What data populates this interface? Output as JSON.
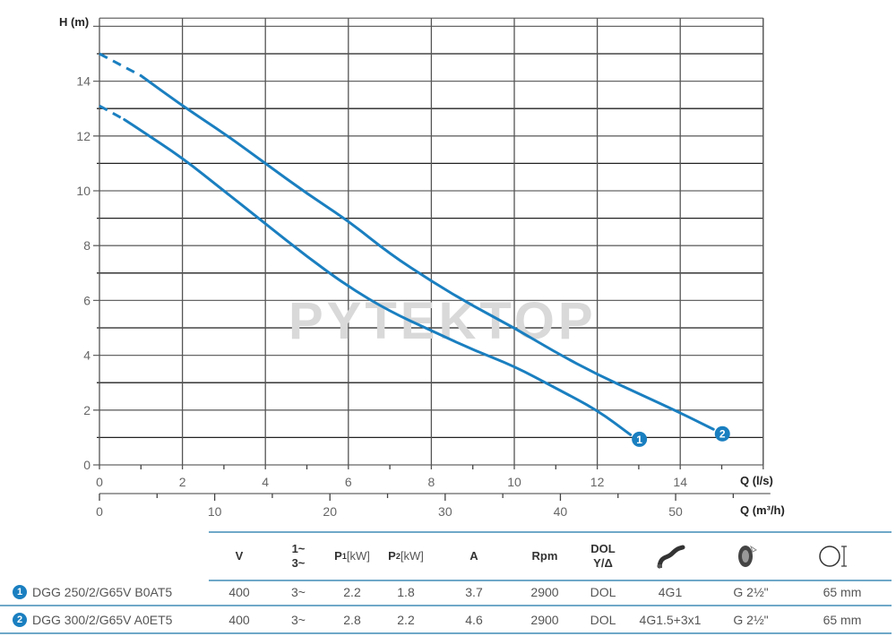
{
  "chart_data": {
    "type": "line",
    "title": "",
    "xlabel": "Q (l/s)",
    "x2label": "Q (m³/h)",
    "ylabel": "H (m)",
    "xlim": [
      0,
      16
    ],
    "x2lim": [
      0,
      57.6
    ],
    "ylim": [
      0,
      16.3
    ],
    "grid": true,
    "x_ticks": [
      0,
      2,
      4,
      6,
      8,
      10,
      12,
      14
    ],
    "x2_ticks": [
      0,
      10,
      20,
      30,
      40,
      50
    ],
    "y_ticks": [
      0,
      2,
      4,
      6,
      8,
      10,
      12,
      14
    ],
    "legend_position": "curve end markers (numbered circles)",
    "series": [
      {
        "name": "1",
        "model": "DGG 250/2/G65V B0AT5",
        "dashed_until_x": 0.6,
        "x": [
          0,
          0.6,
          1,
          2,
          3,
          4,
          5,
          6,
          7,
          8,
          9,
          10,
          11,
          12,
          12.8
        ],
        "y": [
          13.1,
          12.6,
          12.2,
          11.2,
          10.0,
          8.8,
          7.6,
          6.5,
          5.6,
          4.9,
          4.2,
          3.6,
          2.8,
          2.0,
          1.1
        ]
      },
      {
        "name": "2",
        "model": "DGG 300/2/G65V A0ET5",
        "dashed_until_x": 1.0,
        "x": [
          0,
          1,
          2,
          3,
          4,
          5,
          6,
          7,
          8,
          9,
          10,
          11,
          12,
          13,
          14,
          14.8
        ],
        "y": [
          15.0,
          14.2,
          13.1,
          12.1,
          11.0,
          9.9,
          8.9,
          7.7,
          6.7,
          5.8,
          5.0,
          4.1,
          3.3,
          2.6,
          1.9,
          1.3
        ]
      }
    ]
  },
  "chart": {
    "y_title": "H (m)",
    "x_title": "Q (l/s)",
    "x2_title": "Q (m³/h)",
    "watermark": "PYTEKTOP",
    "curve_color": "#1a7fc0"
  },
  "table": {
    "headers": {
      "v": "V",
      "phase_1": "1~",
      "phase_3": "3~",
      "p1": "P",
      "p1_sub": "1",
      "p1_unit": " [kW]",
      "p2": "P",
      "p2_sub": "2",
      "p2_unit": " [kW]",
      "a": "A",
      "rpm": "Rpm",
      "start_1": "DOL",
      "start_2": "Y/Δ",
      "cable_icon": "cable-icon",
      "outlet_icon": "outlet-thread-icon",
      "passage_icon": "free-passage-icon"
    },
    "rows": [
      {
        "badge": "1",
        "model": "DGG 250/2/G65V B0AT5",
        "v": "400",
        "phase": "3~",
        "p1": "2.2",
        "p2": "1.8",
        "a": "3.7",
        "rpm": "2900",
        "start": "DOL",
        "cable": "4G1",
        "outlet": "G 2½\"",
        "passage": "65 mm"
      },
      {
        "badge": "2",
        "model": "DGG 300/2/G65V A0ET5",
        "v": "400",
        "phase": "3~",
        "p1": "2.8",
        "p2": "2.2",
        "a": "4.6",
        "rpm": "2900",
        "start": "DOL",
        "cable": "4G1.5+3x1",
        "outlet": "G 2½\"",
        "passage": "65 mm"
      }
    ]
  }
}
